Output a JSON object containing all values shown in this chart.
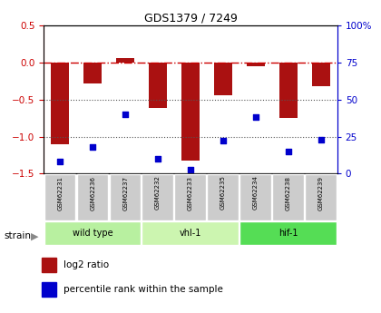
{
  "title": "GDS1379 / 7249",
  "samples": [
    "GSM62231",
    "GSM62236",
    "GSM62237",
    "GSM62232",
    "GSM62233",
    "GSM62235",
    "GSM62234",
    "GSM62238",
    "GSM62239"
  ],
  "log2_ratios": [
    -1.1,
    -0.28,
    0.05,
    -0.62,
    -1.32,
    -0.45,
    -0.05,
    -0.75,
    -0.32
  ],
  "percentile_ranks": [
    8,
    18,
    40,
    10,
    3,
    22,
    38,
    15,
    23
  ],
  "groups": [
    {
      "label": "wild type",
      "start": 0,
      "end": 3,
      "color": "#b8f0a0"
    },
    {
      "label": "vhl-1",
      "start": 3,
      "end": 6,
      "color": "#ccf5b0"
    },
    {
      "label": "hif-1",
      "start": 6,
      "end": 9,
      "color": "#55dd55"
    }
  ],
  "ylim_left": [
    -1.5,
    0.5
  ],
  "ylim_right": [
    0,
    100
  ],
  "bar_color": "#aa1111",
  "dot_color": "#0000cc",
  "hline_color": "#cc0000",
  "dotted_line_color": "#555555",
  "right_yticks": [
    0,
    25,
    50,
    75,
    100
  ],
  "right_yticklabels": [
    "0",
    "25",
    "50",
    "75",
    "100%"
  ],
  "left_yticks": [
    -1.5,
    -1.0,
    -0.5,
    0.0,
    0.5
  ]
}
